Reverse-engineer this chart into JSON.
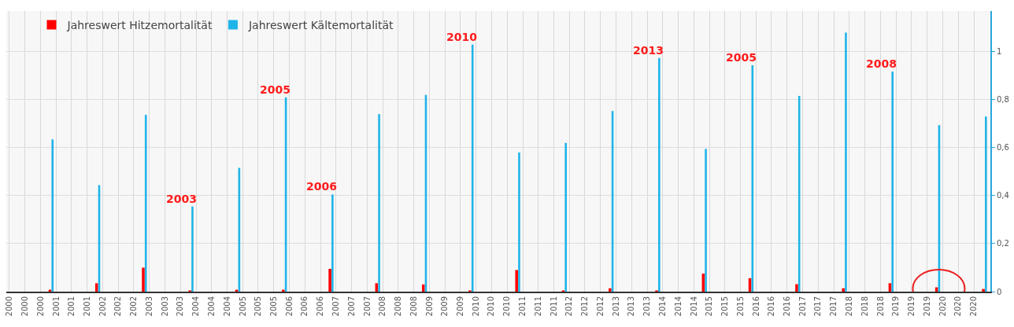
{
  "chart_data": {
    "type": "bar",
    "x": [
      "2000-12-01",
      "2001-12-01",
      "2002-12-01",
      "2003-12-01",
      "2004-12-01",
      "2005-12-01",
      "2006-12-01",
      "2007-12-01",
      "2008-12-01",
      "2009-12-01",
      "2010-12-01",
      "2011-12-01",
      "2012-12-01",
      "2013-12-01",
      "2014-12-01",
      "2015-12-01",
      "2016-12-01",
      "2017-12-01",
      "2018-12-01",
      "2019-12-01",
      "2020-12-01"
    ],
    "series": [
      {
        "name": "Jahreswert Hitzemortalität",
        "color": "#ff0000",
        "values": [
          0.008,
          0.035,
          0.1,
          0.005,
          0.008,
          0.008,
          0.095,
          0.035,
          0.03,
          0.005,
          0.09,
          0.005,
          0.014,
          0.005,
          0.075,
          0.056,
          0.031,
          0.014,
          0.035,
          0.018,
          0.011
        ]
      },
      {
        "name": "Jahreswert Kältemortalität",
        "color": "#1fb4e8",
        "values": [
          0.635,
          0.444,
          0.737,
          0.355,
          0.516,
          0.81,
          0.405,
          0.74,
          0.82,
          1.03,
          0.58,
          0.62,
          0.753,
          0.974,
          0.595,
          0.944,
          0.816,
          1.08,
          0.918,
          0.694,
          0.73
        ]
      }
    ],
    "xlim": [
      "1999-12-08",
      "2021-01-08"
    ],
    "xticks": [
      {
        "value": "2000-01-01",
        "label": "2000"
      },
      {
        "value": "2000-05-01",
        "label": "2000"
      },
      {
        "value": "2000-09-01",
        "label": "2000"
      },
      {
        "value": "2001-01-01",
        "label": "2001"
      },
      {
        "value": "2001-05-01",
        "label": "2001"
      },
      {
        "value": "2001-09-01",
        "label": "2001"
      },
      {
        "value": "2002-01-01",
        "label": "2002"
      },
      {
        "value": "2002-05-01",
        "label": "2002"
      },
      {
        "value": "2002-09-01",
        "label": "2002"
      },
      {
        "value": "2003-01-01",
        "label": "2003"
      },
      {
        "value": "2003-05-01",
        "label": "2003"
      },
      {
        "value": "2003-09-01",
        "label": "2003"
      },
      {
        "value": "2004-01-01",
        "label": "2004"
      },
      {
        "value": "2004-05-01",
        "label": "2004"
      },
      {
        "value": "2004-09-01",
        "label": "2004"
      },
      {
        "value": "2005-01-01",
        "label": "2005"
      },
      {
        "value": "2005-05-01",
        "label": "2005"
      },
      {
        "value": "2005-09-01",
        "label": "2005"
      },
      {
        "value": "2006-01-01",
        "label": "2006"
      },
      {
        "value": "2006-05-01",
        "label": "2006"
      },
      {
        "value": "2006-09-01",
        "label": "2006"
      },
      {
        "value": "2007-01-01",
        "label": "2007"
      },
      {
        "value": "2007-05-01",
        "label": "2007"
      },
      {
        "value": "2007-09-01",
        "label": "2007"
      },
      {
        "value": "2008-01-01",
        "label": "2008"
      },
      {
        "value": "2008-05-01",
        "label": "2008"
      },
      {
        "value": "2008-09-01",
        "label": "2008"
      },
      {
        "value": "2009-01-01",
        "label": "2009"
      },
      {
        "value": "2009-05-01",
        "label": "2009"
      },
      {
        "value": "2009-09-01",
        "label": "2009"
      },
      {
        "value": "2010-01-01",
        "label": "2010"
      },
      {
        "value": "2010-05-01",
        "label": "2010"
      },
      {
        "value": "2010-09-01",
        "label": "2010"
      },
      {
        "value": "2011-01-01",
        "label": "2011"
      },
      {
        "value": "2011-05-01",
        "label": "2011"
      },
      {
        "value": "2011-09-01",
        "label": "2011"
      },
      {
        "value": "2012-01-01",
        "label": "2012"
      },
      {
        "value": "2012-05-01",
        "label": "2012"
      },
      {
        "value": "2012-09-01",
        "label": "2012"
      },
      {
        "value": "2013-01-01",
        "label": "2013"
      },
      {
        "value": "2013-05-01",
        "label": "2013"
      },
      {
        "value": "2013-09-01",
        "label": "2013"
      },
      {
        "value": "2014-01-01",
        "label": "2014"
      },
      {
        "value": "2014-05-01",
        "label": "2014"
      },
      {
        "value": "2014-09-01",
        "label": "2014"
      },
      {
        "value": "2015-01-01",
        "label": "2015"
      },
      {
        "value": "2015-05-01",
        "label": "2015"
      },
      {
        "value": "2015-09-01",
        "label": "2015"
      },
      {
        "value": "2016-01-01",
        "label": "2016"
      },
      {
        "value": "2016-05-01",
        "label": "2016"
      },
      {
        "value": "2016-09-01",
        "label": "2016"
      },
      {
        "value": "2017-01-01",
        "label": "2017"
      },
      {
        "value": "2017-05-01",
        "label": "2017"
      },
      {
        "value": "2017-09-01",
        "label": "2017"
      },
      {
        "value": "2018-01-01",
        "label": "2018"
      },
      {
        "value": "2018-05-01",
        "label": "2018"
      },
      {
        "value": "2018-09-01",
        "label": "2018"
      },
      {
        "value": "2019-01-01",
        "label": "2019"
      },
      {
        "value": "2019-05-01",
        "label": "2019"
      },
      {
        "value": "2019-09-01",
        "label": "2019"
      },
      {
        "value": "2020-01-01",
        "label": "2020"
      },
      {
        "value": "2020-05-01",
        "label": "2020"
      },
      {
        "value": "2020-09-01",
        "label": "2020"
      }
    ],
    "ylim": [
      0,
      1.17
    ],
    "yticks": [
      0,
      {
        "value": 0.2,
        "label": "0,2"
      },
      {
        "value": 0.4,
        "label": "0,4"
      },
      {
        "value": 0.6,
        "label": "0,6"
      },
      {
        "value": 0.8,
        "label": "0,8"
      },
      1
    ],
    "grid": true,
    "legend": "top left",
    "annotations": [
      {
        "text": "2003",
        "x": "2003-12-01",
        "y": 0.355
      },
      {
        "text": "2005",
        "x": "2005-12-01",
        "y": 0.81
      },
      {
        "text": "2006",
        "x": "2006-12-01",
        "y": 0.405
      },
      {
        "text": "2010",
        "x": "2009-12-01",
        "y": 1.03
      },
      {
        "text": "2013",
        "x": "2013-12-01",
        "y": 0.974
      },
      {
        "text": "2005",
        "x": "2015-12-01",
        "y": 0.944
      },
      {
        "text": "2008",
        "x": "2018-12-01",
        "y": 0.918
      }
    ]
  }
}
